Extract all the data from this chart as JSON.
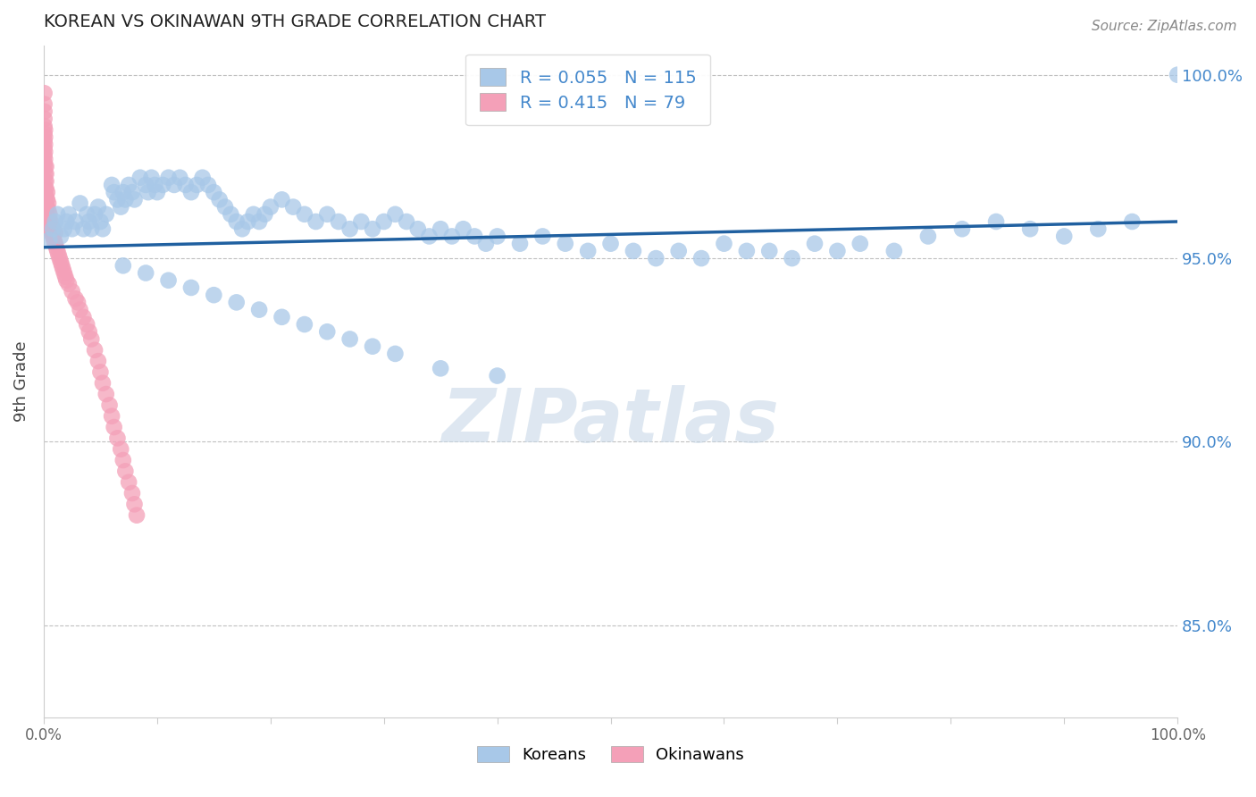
{
  "title": "KOREAN VS OKINAWAN 9TH GRADE CORRELATION CHART",
  "source": "Source: ZipAtlas.com",
  "ylabel": "9th Grade",
  "xlim": [
    0.0,
    1.0
  ],
  "ylim": [
    0.825,
    1.008
  ],
  "yticks": [
    0.85,
    0.9,
    0.95,
    1.0
  ],
  "ytick_labels": [
    "85.0%",
    "90.0%",
    "95.0%",
    "100.0%"
  ],
  "xticks": [
    0.0,
    0.1,
    0.2,
    0.3,
    0.4,
    0.5,
    0.6,
    0.7,
    0.8,
    0.9,
    1.0
  ],
  "xtick_labels": [
    "0.0%",
    "",
    "",
    "",
    "",
    "",
    "",
    "",
    "",
    "",
    "100.0%"
  ],
  "korean_R": 0.055,
  "korean_N": 115,
  "okinawan_R": 0.415,
  "okinawan_N": 79,
  "blue_color": "#a8c8e8",
  "pink_color": "#f4a0b8",
  "trend_color": "#2060a0",
  "grid_color": "#c0c0c0",
  "title_color": "#222222",
  "axis_label_color": "#4488cc",
  "background_color": "#ffffff",
  "korean_x": [
    0.005,
    0.008,
    0.01,
    0.012,
    0.015,
    0.018,
    0.02,
    0.022,
    0.025,
    0.028,
    0.032,
    0.035,
    0.038,
    0.04,
    0.042,
    0.045,
    0.048,
    0.05,
    0.052,
    0.055,
    0.06,
    0.062,
    0.065,
    0.068,
    0.07,
    0.072,
    0.075,
    0.078,
    0.08,
    0.085,
    0.09,
    0.092,
    0.095,
    0.098,
    0.1,
    0.105,
    0.11,
    0.115,
    0.12,
    0.125,
    0.13,
    0.135,
    0.14,
    0.145,
    0.15,
    0.155,
    0.16,
    0.165,
    0.17,
    0.175,
    0.18,
    0.185,
    0.19,
    0.195,
    0.2,
    0.21,
    0.22,
    0.23,
    0.24,
    0.25,
    0.26,
    0.27,
    0.28,
    0.29,
    0.3,
    0.31,
    0.32,
    0.33,
    0.34,
    0.35,
    0.36,
    0.37,
    0.38,
    0.39,
    0.4,
    0.42,
    0.44,
    0.46,
    0.48,
    0.5,
    0.52,
    0.54,
    0.56,
    0.58,
    0.6,
    0.62,
    0.64,
    0.66,
    0.68,
    0.7,
    0.72,
    0.75,
    0.78,
    0.81,
    0.84,
    0.87,
    0.9,
    0.93,
    0.96,
    1.0,
    0.07,
    0.09,
    0.11,
    0.13,
    0.15,
    0.17,
    0.19,
    0.21,
    0.23,
    0.25,
    0.27,
    0.29,
    0.31,
    0.35,
    0.4
  ],
  "korean_y": [
    0.955,
    0.958,
    0.96,
    0.962,
    0.956,
    0.958,
    0.96,
    0.962,
    0.958,
    0.96,
    0.965,
    0.958,
    0.962,
    0.96,
    0.958,
    0.962,
    0.964,
    0.96,
    0.958,
    0.962,
    0.97,
    0.968,
    0.966,
    0.964,
    0.968,
    0.966,
    0.97,
    0.968,
    0.966,
    0.972,
    0.97,
    0.968,
    0.972,
    0.97,
    0.968,
    0.97,
    0.972,
    0.97,
    0.972,
    0.97,
    0.968,
    0.97,
    0.972,
    0.97,
    0.968,
    0.966,
    0.964,
    0.962,
    0.96,
    0.958,
    0.96,
    0.962,
    0.96,
    0.962,
    0.964,
    0.966,
    0.964,
    0.962,
    0.96,
    0.962,
    0.96,
    0.958,
    0.96,
    0.958,
    0.96,
    0.962,
    0.96,
    0.958,
    0.956,
    0.958,
    0.956,
    0.958,
    0.956,
    0.954,
    0.956,
    0.954,
    0.956,
    0.954,
    0.952,
    0.954,
    0.952,
    0.95,
    0.952,
    0.95,
    0.954,
    0.952,
    0.952,
    0.95,
    0.954,
    0.952,
    0.954,
    0.952,
    0.956,
    0.958,
    0.96,
    0.958,
    0.956,
    0.958,
    0.96,
    1.0,
    0.948,
    0.946,
    0.944,
    0.942,
    0.94,
    0.938,
    0.936,
    0.934,
    0.932,
    0.93,
    0.928,
    0.926,
    0.924,
    0.92,
    0.918
  ],
  "okinawan_x": [
    0.0005,
    0.0005,
    0.0005,
    0.0005,
    0.0005,
    0.0005,
    0.0005,
    0.0005,
    0.0005,
    0.0005,
    0.001,
    0.001,
    0.001,
    0.001,
    0.001,
    0.001,
    0.001,
    0.001,
    0.001,
    0.001,
    0.002,
    0.002,
    0.002,
    0.002,
    0.002,
    0.002,
    0.002,
    0.003,
    0.003,
    0.003,
    0.004,
    0.004,
    0.004,
    0.005,
    0.005,
    0.005,
    0.006,
    0.006,
    0.007,
    0.008,
    0.008,
    0.009,
    0.01,
    0.01,
    0.011,
    0.012,
    0.013,
    0.014,
    0.015,
    0.016,
    0.017,
    0.018,
    0.019,
    0.02,
    0.022,
    0.025,
    0.028,
    0.03,
    0.032,
    0.035,
    0.038,
    0.04,
    0.042,
    0.045,
    0.048,
    0.05,
    0.052,
    0.055,
    0.058,
    0.06,
    0.062,
    0.065,
    0.068,
    0.07,
    0.072,
    0.075,
    0.078,
    0.08,
    0.082
  ],
  "okinawan_y": [
    0.995,
    0.992,
    0.99,
    0.988,
    0.986,
    0.984,
    0.982,
    0.98,
    0.978,
    0.976,
    0.985,
    0.983,
    0.981,
    0.979,
    0.977,
    0.975,
    0.973,
    0.971,
    0.969,
    0.967,
    0.975,
    0.973,
    0.971,
    0.969,
    0.967,
    0.965,
    0.963,
    0.968,
    0.966,
    0.964,
    0.965,
    0.963,
    0.961,
    0.962,
    0.96,
    0.958,
    0.96,
    0.958,
    0.957,
    0.958,
    0.956,
    0.955,
    0.957,
    0.954,
    0.953,
    0.952,
    0.951,
    0.95,
    0.949,
    0.948,
    0.947,
    0.946,
    0.945,
    0.944,
    0.943,
    0.941,
    0.939,
    0.938,
    0.936,
    0.934,
    0.932,
    0.93,
    0.928,
    0.925,
    0.922,
    0.919,
    0.916,
    0.913,
    0.91,
    0.907,
    0.904,
    0.901,
    0.898,
    0.895,
    0.892,
    0.889,
    0.886,
    0.883,
    0.88
  ],
  "trend_line_x": [
    0.0,
    1.0
  ],
  "trend_line_y": [
    0.953,
    0.96
  ],
  "watermark": "ZIPatlas",
  "watermark_color": "#c8d8e8"
}
